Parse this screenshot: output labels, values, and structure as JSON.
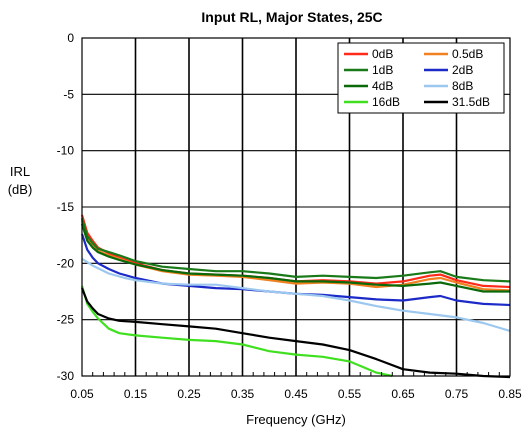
{
  "chart_data": {
    "type": "line",
    "title": "Input RL, Major States, 25C",
    "xlabel": "Frequency (GHz)",
    "ylabel_lines": [
      "IRL",
      "(dB)"
    ],
    "xlim": [
      0.05,
      0.85
    ],
    "ylim": [
      -30,
      0
    ],
    "xticks": [
      "0.05",
      "0.15",
      "0.25",
      "0.35",
      "0.45",
      "0.55",
      "0.65",
      "0.75",
      "0.85"
    ],
    "yticks": [
      "0",
      "-5",
      "-10",
      "-15",
      "-20",
      "-25",
      "-30"
    ],
    "grid": true,
    "legend_position": "top-right",
    "series": [
      {
        "name": "0dB",
        "color": "#ff2a1a",
        "x": [
          0.05,
          0.06,
          0.07,
          0.08,
          0.1,
          0.12,
          0.15,
          0.2,
          0.25,
          0.3,
          0.35,
          0.4,
          0.45,
          0.5,
          0.55,
          0.6,
          0.65,
          0.7,
          0.72,
          0.75,
          0.8,
          0.85
        ],
        "y": [
          -15.7,
          -17.3,
          -18.0,
          -18.6,
          -19.1,
          -19.5,
          -20.0,
          -20.6,
          -20.9,
          -21.0,
          -21.1,
          -21.3,
          -21.6,
          -21.5,
          -21.6,
          -21.8,
          -21.6,
          -21.1,
          -21.0,
          -21.5,
          -22.0,
          -22.1
        ]
      },
      {
        "name": "0.5dB",
        "color": "#f08020",
        "x": [
          0.05,
          0.06,
          0.07,
          0.08,
          0.1,
          0.12,
          0.15,
          0.2,
          0.25,
          0.3,
          0.35,
          0.4,
          0.45,
          0.5,
          0.55,
          0.6,
          0.65,
          0.7,
          0.72,
          0.75,
          0.8,
          0.85
        ],
        "y": [
          -16.2,
          -17.8,
          -18.4,
          -18.9,
          -19.3,
          -19.6,
          -20.1,
          -20.7,
          -21.0,
          -21.1,
          -21.2,
          -21.5,
          -21.8,
          -21.7,
          -21.8,
          -22.1,
          -21.9,
          -21.4,
          -21.3,
          -21.7,
          -22.3,
          -22.4
        ]
      },
      {
        "name": "1dB",
        "color": "#1a7a1a",
        "x": [
          0.05,
          0.06,
          0.07,
          0.08,
          0.1,
          0.12,
          0.15,
          0.2,
          0.25,
          0.3,
          0.35,
          0.4,
          0.45,
          0.5,
          0.55,
          0.6,
          0.65,
          0.7,
          0.72,
          0.75,
          0.8,
          0.85
        ],
        "y": [
          -16.0,
          -17.6,
          -18.2,
          -18.7,
          -19.0,
          -19.3,
          -19.8,
          -20.3,
          -20.5,
          -20.7,
          -20.7,
          -20.9,
          -21.2,
          -21.1,
          -21.2,
          -21.3,
          -21.1,
          -20.8,
          -20.7,
          -21.2,
          -21.5,
          -21.6
        ]
      },
      {
        "name": "2dB",
        "color": "#1c2ac8",
        "x": [
          0.05,
          0.06,
          0.07,
          0.08,
          0.1,
          0.12,
          0.15,
          0.2,
          0.25,
          0.3,
          0.35,
          0.4,
          0.45,
          0.5,
          0.55,
          0.6,
          0.65,
          0.7,
          0.72,
          0.75,
          0.8,
          0.85
        ],
        "y": [
          -17.4,
          -18.8,
          -19.5,
          -20.0,
          -20.5,
          -20.9,
          -21.3,
          -21.8,
          -22.0,
          -22.2,
          -22.3,
          -22.5,
          -22.7,
          -22.8,
          -23.0,
          -23.2,
          -23.3,
          -23.0,
          -22.9,
          -23.3,
          -23.6,
          -23.7
        ]
      },
      {
        "name": "4dB",
        "color": "#0a6a0a",
        "x": [
          0.05,
          0.06,
          0.07,
          0.08,
          0.1,
          0.12,
          0.15,
          0.2,
          0.25,
          0.3,
          0.35,
          0.4,
          0.45,
          0.5,
          0.55,
          0.6,
          0.65,
          0.7,
          0.72,
          0.75,
          0.8,
          0.85
        ],
        "y": [
          -16.5,
          -18.0,
          -18.6,
          -19.0,
          -19.4,
          -19.7,
          -20.1,
          -20.6,
          -20.9,
          -21.0,
          -21.1,
          -21.3,
          -21.6,
          -21.6,
          -21.7,
          -21.9,
          -22.0,
          -21.8,
          -21.7,
          -22.0,
          -22.5,
          -22.5
        ]
      },
      {
        "name": "8dB",
        "color": "#9cc8f0",
        "x": [
          0.05,
          0.07,
          0.1,
          0.13,
          0.15,
          0.2,
          0.25,
          0.3,
          0.35,
          0.4,
          0.45,
          0.5,
          0.55,
          0.6,
          0.65,
          0.7,
          0.75,
          0.8,
          0.85
        ],
        "y": [
          -19.6,
          -20.2,
          -20.9,
          -21.3,
          -21.5,
          -21.8,
          -21.9,
          -21.9,
          -22.2,
          -22.5,
          -22.7,
          -22.9,
          -23.3,
          -23.8,
          -24.2,
          -24.5,
          -24.8,
          -25.3,
          -26.0
        ]
      },
      {
        "name": "16dB",
        "color": "#40e020",
        "x": [
          0.05,
          0.06,
          0.07,
          0.08,
          0.1,
          0.12,
          0.15,
          0.2,
          0.25,
          0.3,
          0.35,
          0.4,
          0.45,
          0.5,
          0.55,
          0.6,
          0.63
        ],
        "y": [
          -22.0,
          -23.6,
          -24.3,
          -24.9,
          -25.8,
          -26.2,
          -26.4,
          -26.6,
          -26.8,
          -26.9,
          -27.2,
          -27.8,
          -28.1,
          -28.3,
          -28.7,
          -29.7,
          -30.0
        ]
      },
      {
        "name": "31.5dB",
        "color": "#000000",
        "x": [
          0.05,
          0.06,
          0.07,
          0.08,
          0.1,
          0.12,
          0.15,
          0.2,
          0.25,
          0.3,
          0.35,
          0.4,
          0.45,
          0.5,
          0.55,
          0.6,
          0.65,
          0.7,
          0.75,
          0.8,
          0.85
        ],
        "y": [
          -22.2,
          -23.4,
          -24.0,
          -24.5,
          -24.9,
          -25.1,
          -25.2,
          -25.4,
          -25.6,
          -25.8,
          -26.2,
          -26.6,
          -26.9,
          -27.2,
          -27.7,
          -28.5,
          -29.4,
          -29.7,
          -29.8,
          -30.0,
          -30.1
        ]
      }
    ]
  }
}
